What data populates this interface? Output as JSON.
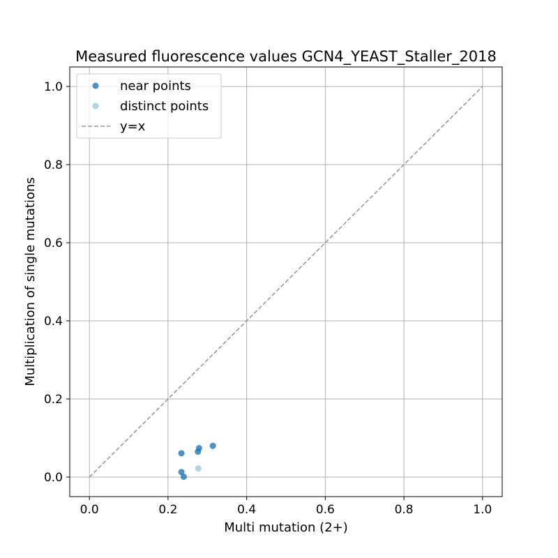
{
  "chart_data": {
    "type": "scatter",
    "title": "Measured fluorescence values GCN4_YEAST_Staller_2018",
    "xlabel": "Multi mutation (2+)",
    "ylabel": "Multiplication of single mutations",
    "xlim": [
      -0.05,
      1.05
    ],
    "ylim": [
      -0.05,
      1.05
    ],
    "xticks": [
      "0.0",
      "0.2",
      "0.4",
      "0.6",
      "0.8",
      "1.0"
    ],
    "yticks": [
      "0.0",
      "0.2",
      "0.4",
      "0.6",
      "0.8",
      "1.0"
    ],
    "grid": true,
    "legend_position": "top-left",
    "series": [
      {
        "name": "near points",
        "color": "#1f77b4",
        "points": [
          {
            "x": 0.234,
            "y": 0.061
          },
          {
            "x": 0.234,
            "y": 0.013
          },
          {
            "x": 0.24,
            "y": 0.001
          },
          {
            "x": 0.276,
            "y": 0.065
          },
          {
            "x": 0.279,
            "y": 0.074
          },
          {
            "x": 0.314,
            "y": 0.08
          }
        ]
      },
      {
        "name": "distinct points",
        "color": "#9ecae1",
        "points": [
          {
            "x": 0.277,
            "y": 0.022
          }
        ]
      }
    ],
    "reference_line": {
      "name": "y=x",
      "color": "#999999",
      "style": "dashed",
      "from": [
        0,
        0
      ],
      "to": [
        1,
        1
      ]
    }
  }
}
